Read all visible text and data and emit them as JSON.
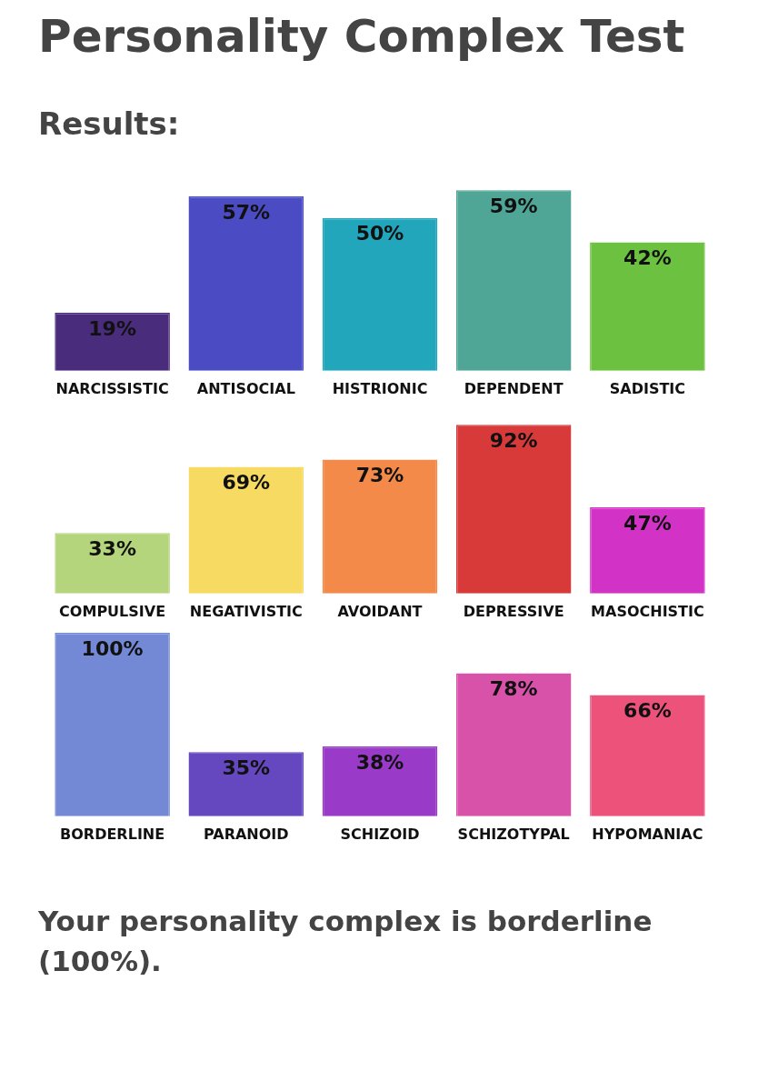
{
  "chart_data": [
    {
      "type": "bar",
      "title": "Personality Complex Test",
      "subtitle": "Results:",
      "categories": [
        "NARCISSISTIC",
        "ANTISOCIAL",
        "HISTRIONIC",
        "DEPENDENT",
        "SADISTIC"
      ],
      "values": [
        19,
        57,
        50,
        59,
        42
      ],
      "value_labels": [
        "19%",
        "57%",
        "50%",
        "59%",
        "42%"
      ],
      "colors": [
        "#4a2c7c",
        "#4b4bc4",
        "#22a6bb",
        "#4fa596",
        "#6cc240"
      ],
      "tick_labels": "x",
      "legend": false
    },
    {
      "type": "bar",
      "categories": [
        "COMPULSIVE",
        "NEGATIVISTIC",
        "AVOIDANT",
        "DEPRESSIVE",
        "MASOCHISTIC"
      ],
      "values": [
        33,
        69,
        73,
        92,
        47
      ],
      "value_labels": [
        "33%",
        "69%",
        "73%",
        "92%",
        "47%"
      ],
      "colors": [
        "#b4d57c",
        "#f6da62",
        "#f48a4a",
        "#d83a3a",
        "#d232c6"
      ],
      "tick_labels": "x",
      "legend": false
    },
    {
      "type": "bar",
      "categories": [
        "BORDERLINE",
        "PARANOID",
        "SCHIZOID",
        "SCHIZOTYPAL",
        "HYPOMANIAC"
      ],
      "values": [
        100,
        35,
        38,
        78,
        66
      ],
      "value_labels": [
        "100%",
        "35%",
        "38%",
        "78%",
        "66%"
      ],
      "colors": [
        "#7489d6",
        "#6548c0",
        "#9a3ac8",
        "#d852aa",
        "#ec527a"
      ],
      "tick_labels": "x",
      "legend": false,
      "annotations": [
        "Your personality complex is borderline (100%)."
      ]
    }
  ]
}
